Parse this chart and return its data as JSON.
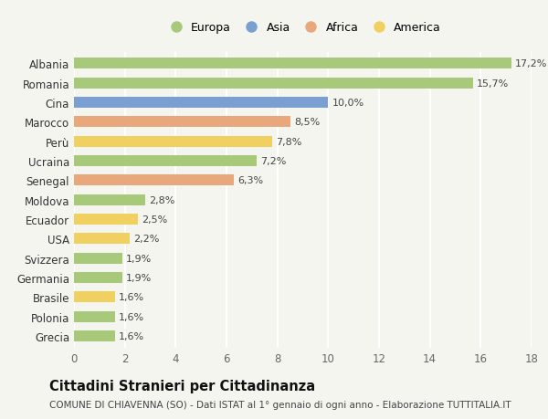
{
  "countries": [
    "Albania",
    "Romania",
    "Cina",
    "Marocco",
    "Perù",
    "Ucraina",
    "Senegal",
    "Moldova",
    "Ecuador",
    "USA",
    "Svizzera",
    "Germania",
    "Brasile",
    "Polonia",
    "Grecia"
  ],
  "values": [
    17.2,
    15.7,
    10.0,
    8.5,
    7.8,
    7.2,
    6.3,
    2.8,
    2.5,
    2.2,
    1.9,
    1.9,
    1.6,
    1.6,
    1.6
  ],
  "categories": [
    "Europa",
    "Europa",
    "Asia",
    "Africa",
    "America",
    "Europa",
    "Africa",
    "Europa",
    "America",
    "America",
    "Europa",
    "Europa",
    "America",
    "Europa",
    "Europa"
  ],
  "colors": {
    "Europa": "#a8c87a",
    "Asia": "#7b9fd0",
    "Africa": "#e8a87c",
    "America": "#f0d060"
  },
  "legend_order": [
    "Europa",
    "Asia",
    "Africa",
    "America"
  ],
  "title": "Cittadini Stranieri per Cittadinanza",
  "subtitle": "COMUNE DI CHIAVENNA (SO) - Dati ISTAT al 1° gennaio di ogni anno - Elaborazione TUTTITALIA.IT",
  "xlim": [
    0,
    18
  ],
  "xticks": [
    0,
    2,
    4,
    6,
    8,
    10,
    12,
    14,
    16,
    18
  ],
  "background_color": "#f5f5f0",
  "grid_color": "#ffffff",
  "bar_height": 0.55,
  "label_fontsize": 8,
  "title_fontsize": 10.5,
  "subtitle_fontsize": 7.5,
  "tick_fontsize": 8.5,
  "legend_fontsize": 9
}
